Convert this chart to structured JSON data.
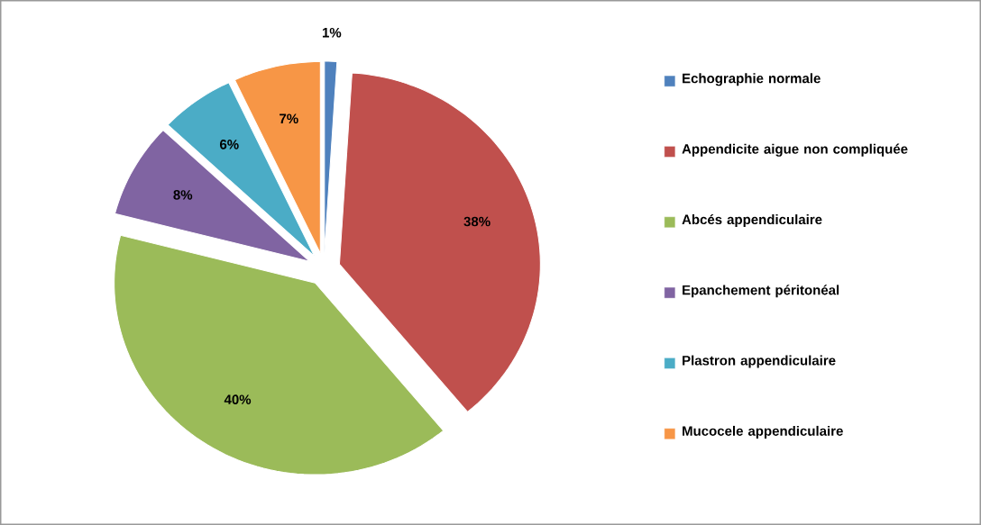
{
  "chart_data": {
    "type": "pie",
    "categories": [
      "Echographie normale",
      "Appendicite aigue non compliquée",
      "Abcés appendiculaire",
      "Epanchement péritonéal",
      "Plastron appendiculaire",
      "Mucocele appendiculaire"
    ],
    "values": [
      1,
      38,
      40,
      8,
      6,
      7
    ],
    "value_labels": [
      "1%",
      "38%",
      "40%",
      "8%",
      "6%",
      "7%"
    ],
    "colors": [
      "#4f81bd",
      "#c0504d",
      "#9bbb59",
      "#8064a2",
      "#4bacc6",
      "#f79646"
    ],
    "legend": "right"
  }
}
